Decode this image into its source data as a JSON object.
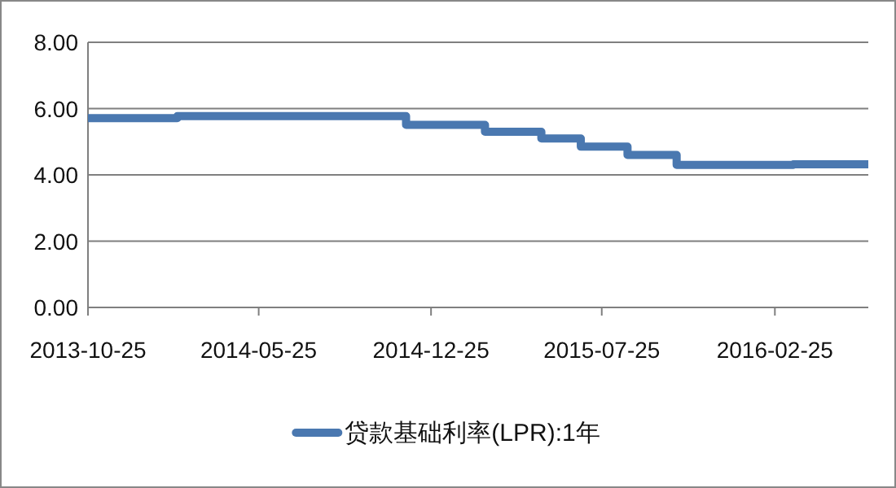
{
  "chart_data": {
    "type": "step",
    "x": [
      "2013-10-25",
      "2014-02-13",
      "2014-11-24",
      "2015-03-02",
      "2015-05-11",
      "2015-06-29",
      "2015-08-26",
      "2015-10-26",
      "2016-03-19",
      "2016-06-20"
    ],
    "series": [
      {
        "name": "贷款基础利率(LPR):1年",
        "color": "#4a78b0",
        "values": [
          5.71,
          5.77,
          5.51,
          5.3,
          5.1,
          4.85,
          4.6,
          4.3,
          4.32,
          4.32
        ]
      }
    ],
    "xlim": [
      "2013-10-25",
      "2016-06-20"
    ],
    "xticks": [
      "2013-10-25",
      "2014-05-25",
      "2014-12-25",
      "2015-07-25",
      "2016-02-25"
    ],
    "ylim": [
      0,
      8
    ],
    "yticks": [
      {
        "value": 0,
        "label": "0.00"
      },
      {
        "value": 2,
        "label": "2.00"
      },
      {
        "value": 4,
        "label": "4.00"
      },
      {
        "value": 6,
        "label": "6.00"
      },
      {
        "value": 8,
        "label": "8.00"
      }
    ],
    "grid": "y",
    "legend": "bottom",
    "marker": "none",
    "line_style": "solid"
  }
}
